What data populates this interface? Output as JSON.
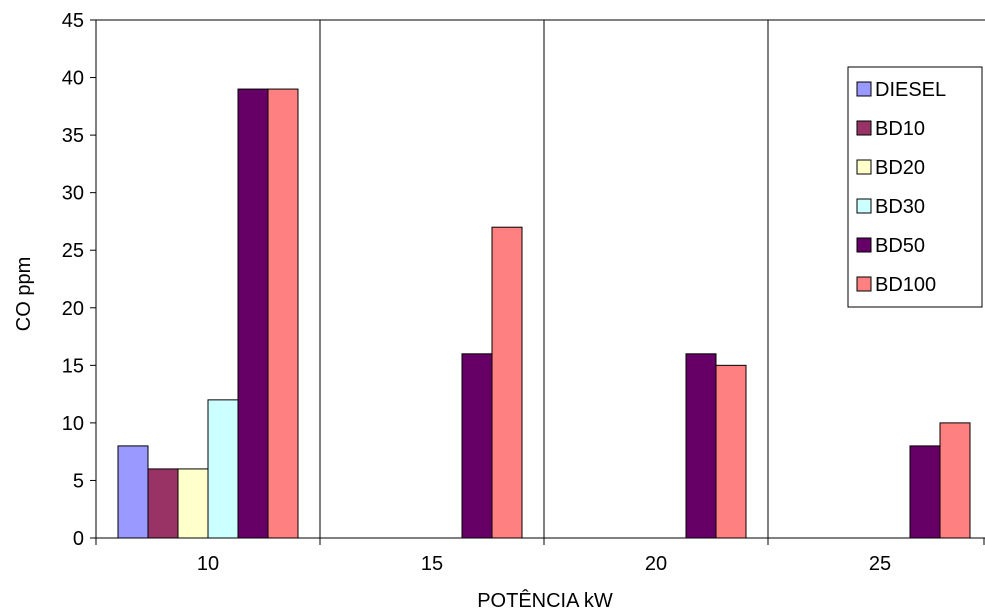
{
  "chart_data": {
    "type": "bar",
    "title": "",
    "xlabel": "POTÊNCIA kW",
    "ylabel": "CO ppm",
    "categories": [
      "10",
      "15",
      "20",
      "25"
    ],
    "ylim": [
      0,
      45
    ],
    "yticks": [
      0,
      5,
      10,
      15,
      20,
      25,
      30,
      35,
      40,
      45
    ],
    "grid": "vertical lines between categories",
    "legend_position": "right",
    "series": [
      {
        "name": "DIESEL",
        "color": "#9999FF",
        "values": [
          8,
          0,
          0,
          0
        ]
      },
      {
        "name": "BD10",
        "color": "#993366",
        "values": [
          6,
          0,
          0,
          0
        ]
      },
      {
        "name": "BD20",
        "color": "#FFFFCC",
        "values": [
          6,
          0,
          0,
          0
        ]
      },
      {
        "name": "BD30",
        "color": "#CCFFFF",
        "values": [
          12,
          0,
          0,
          0
        ]
      },
      {
        "name": "BD50",
        "color": "#660066",
        "values": [
          39,
          16,
          16,
          8
        ]
      },
      {
        "name": "BD100",
        "color": "#FF8080",
        "values": [
          39,
          27,
          15,
          10
        ]
      }
    ]
  }
}
